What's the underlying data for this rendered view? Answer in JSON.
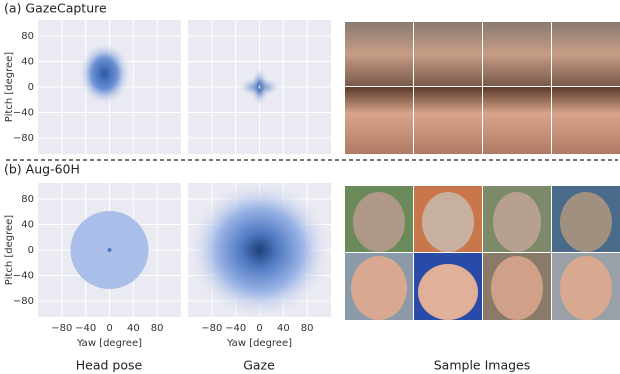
{
  "figure": {
    "rows": [
      {
        "label": "(a) GazeCapture"
      },
      {
        "label": "(b) Aug-60H"
      }
    ],
    "columns": [
      "Head pose",
      "Gaze",
      "Sample Images"
    ],
    "axes": {
      "xlabel": "Yaw [degree]",
      "ylabel": "Pitch [degree]",
      "xlim": [
        -120,
        120
      ],
      "ylim": [
        -105,
        105
      ],
      "xticks": [
        {
          "value": -80,
          "label": "−80"
        },
        {
          "value": -40,
          "label": "−40"
        },
        0,
        40,
        80
      ],
      "yticks": [
        80,
        40,
        0,
        {
          "value": -40,
          "label": "−40"
        },
        {
          "value": -80,
          "label": "−80"
        }
      ],
      "grid": true
    }
  }
}
